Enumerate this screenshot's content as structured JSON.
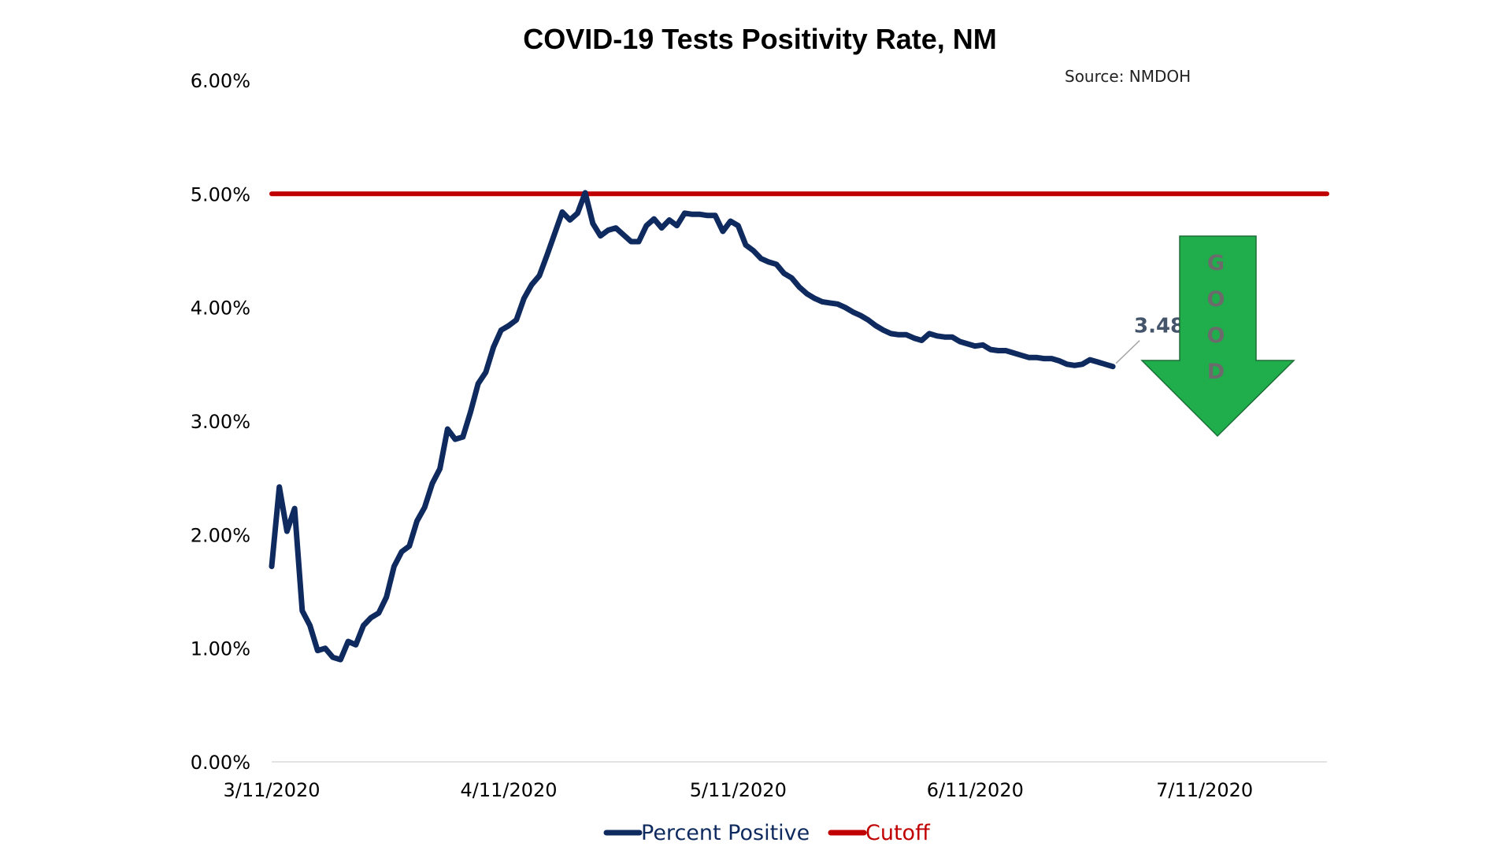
{
  "chart_data": {
    "type": "line",
    "title": "COVID-19 Tests Positivity Rate, NM",
    "source": "Source: NMDOH",
    "xlabel": "",
    "ylabel": "",
    "x_axis": {
      "min": "2020-03-11",
      "max": "2020-07-27",
      "ticks": [
        "2020-03-11",
        "2020-04-11",
        "2020-05-11",
        "2020-06-11",
        "2020-07-11"
      ],
      "tick_labels": [
        "3/11/2020",
        "4/11/2020",
        "5/11/2020",
        "6/11/2020",
        "7/11/2020"
      ]
    },
    "y_axis": {
      "min": 0,
      "max": 0.06,
      "ticks": [
        0,
        0.01,
        0.02,
        0.03,
        0.04,
        0.05,
        0.06
      ],
      "tick_labels": [
        "0.00%",
        "1.00%",
        "2.00%",
        "3.00%",
        "4.00%",
        "5.00%",
        "6.00%"
      ]
    },
    "grid": false,
    "legend_position": "bottom",
    "series": [
      {
        "name": "Percent Positive",
        "color": "#0f2a5e",
        "points": [
          [
            "2020-03-11",
            0.0172
          ],
          [
            "2020-03-12",
            0.0242
          ],
          [
            "2020-03-13",
            0.0203
          ],
          [
            "2020-03-14",
            0.0223
          ],
          [
            "2020-03-15",
            0.0133
          ],
          [
            "2020-03-16",
            0.012
          ],
          [
            "2020-03-17",
            0.0098
          ],
          [
            "2020-03-18",
            0.01
          ],
          [
            "2020-03-19",
            0.0092
          ],
          [
            "2020-03-20",
            0.009
          ],
          [
            "2020-03-21",
            0.0106
          ],
          [
            "2020-03-22",
            0.0103
          ],
          [
            "2020-03-23",
            0.012
          ],
          [
            "2020-03-24",
            0.0127
          ],
          [
            "2020-03-25",
            0.0131
          ],
          [
            "2020-03-26",
            0.0145
          ],
          [
            "2020-03-27",
            0.0172
          ],
          [
            "2020-03-28",
            0.0185
          ],
          [
            "2020-03-29",
            0.019
          ],
          [
            "2020-03-30",
            0.0212
          ],
          [
            "2020-03-31",
            0.0224
          ],
          [
            "2020-04-01",
            0.0245
          ],
          [
            "2020-04-02",
            0.0258
          ],
          [
            "2020-04-03",
            0.0293
          ],
          [
            "2020-04-04",
            0.0284
          ],
          [
            "2020-04-05",
            0.0286
          ],
          [
            "2020-04-06",
            0.0308
          ],
          [
            "2020-04-07",
            0.0333
          ],
          [
            "2020-04-08",
            0.0343
          ],
          [
            "2020-04-09",
            0.0365
          ],
          [
            "2020-04-10",
            0.038
          ],
          [
            "2020-04-11",
            0.0384
          ],
          [
            "2020-04-12",
            0.0389
          ],
          [
            "2020-04-13",
            0.0408
          ],
          [
            "2020-04-14",
            0.042
          ],
          [
            "2020-04-15",
            0.0428
          ],
          [
            "2020-04-16",
            0.0446
          ],
          [
            "2020-04-17",
            0.0465
          ],
          [
            "2020-04-18",
            0.0484
          ],
          [
            "2020-04-19",
            0.0477
          ],
          [
            "2020-04-20",
            0.0483
          ],
          [
            "2020-04-21",
            0.0501
          ],
          [
            "2020-04-22",
            0.0474
          ],
          [
            "2020-04-23",
            0.0463
          ],
          [
            "2020-04-24",
            0.0468
          ],
          [
            "2020-04-25",
            0.047
          ],
          [
            "2020-04-26",
            0.0464
          ],
          [
            "2020-04-27",
            0.0458
          ],
          [
            "2020-04-28",
            0.0458
          ],
          [
            "2020-04-29",
            0.0472
          ],
          [
            "2020-04-30",
            0.0478
          ],
          [
            "2020-05-01",
            0.047
          ],
          [
            "2020-05-02",
            0.0477
          ],
          [
            "2020-05-03",
            0.0472
          ],
          [
            "2020-05-04",
            0.0483
          ],
          [
            "2020-05-05",
            0.0482
          ],
          [
            "2020-05-06",
            0.0482
          ],
          [
            "2020-05-07",
            0.0481
          ],
          [
            "2020-05-08",
            0.0481
          ],
          [
            "2020-05-09",
            0.0467
          ],
          [
            "2020-05-10",
            0.0476
          ],
          [
            "2020-05-11",
            0.0472
          ],
          [
            "2020-05-12",
            0.0455
          ],
          [
            "2020-05-13",
            0.045
          ],
          [
            "2020-05-14",
            0.0443
          ],
          [
            "2020-05-15",
            0.044
          ],
          [
            "2020-05-16",
            0.0438
          ],
          [
            "2020-05-17",
            0.043
          ],
          [
            "2020-05-18",
            0.0426
          ],
          [
            "2020-05-19",
            0.0418
          ],
          [
            "2020-05-20",
            0.0412
          ],
          [
            "2020-05-21",
            0.0408
          ],
          [
            "2020-05-22",
            0.0405
          ],
          [
            "2020-05-23",
            0.0404
          ],
          [
            "2020-05-24",
            0.0403
          ],
          [
            "2020-05-25",
            0.04
          ],
          [
            "2020-05-26",
            0.0396
          ],
          [
            "2020-05-27",
            0.0393
          ],
          [
            "2020-05-28",
            0.0389
          ],
          [
            "2020-05-29",
            0.0384
          ],
          [
            "2020-05-30",
            0.038
          ],
          [
            "2020-05-31",
            0.0377
          ],
          [
            "2020-06-01",
            0.0376
          ],
          [
            "2020-06-02",
            0.0376
          ],
          [
            "2020-06-03",
            0.0373
          ],
          [
            "2020-06-04",
            0.0371
          ],
          [
            "2020-06-05",
            0.0377
          ],
          [
            "2020-06-06",
            0.0375
          ],
          [
            "2020-06-07",
            0.0374
          ],
          [
            "2020-06-08",
            0.0374
          ],
          [
            "2020-06-09",
            0.037
          ],
          [
            "2020-06-10",
            0.0368
          ],
          [
            "2020-06-11",
            0.0366
          ],
          [
            "2020-06-12",
            0.0367
          ],
          [
            "2020-06-13",
            0.0363
          ],
          [
            "2020-06-14",
            0.0362
          ],
          [
            "2020-06-15",
            0.0362
          ],
          [
            "2020-06-16",
            0.036
          ],
          [
            "2020-06-17",
            0.0358
          ],
          [
            "2020-06-18",
            0.0356
          ],
          [
            "2020-06-19",
            0.0356
          ],
          [
            "2020-06-20",
            0.0355
          ],
          [
            "2020-06-21",
            0.0355
          ],
          [
            "2020-06-22",
            0.0353
          ],
          [
            "2020-06-23",
            0.035
          ],
          [
            "2020-06-24",
            0.0349
          ],
          [
            "2020-06-25",
            0.035
          ],
          [
            "2020-06-26",
            0.0354
          ],
          [
            "2020-06-27",
            0.0352
          ],
          [
            "2020-06-28",
            0.035
          ],
          [
            "2020-06-29",
            0.0348
          ]
        ]
      },
      {
        "name": "Cutoff",
        "color": "#c00000",
        "points": [
          [
            "2020-03-11",
            0.05
          ],
          [
            "2020-07-27",
            0.05
          ]
        ]
      }
    ],
    "annotations": [
      {
        "text": "3.48%",
        "x": "2020-06-29",
        "y": 0.0348,
        "color": "#44546a"
      }
    ],
    "callout": {
      "shape": "down-arrow",
      "letters": [
        "G",
        "O",
        "O",
        "D"
      ],
      "fill": "#1fae4b",
      "stroke": "#1b6e35"
    }
  }
}
